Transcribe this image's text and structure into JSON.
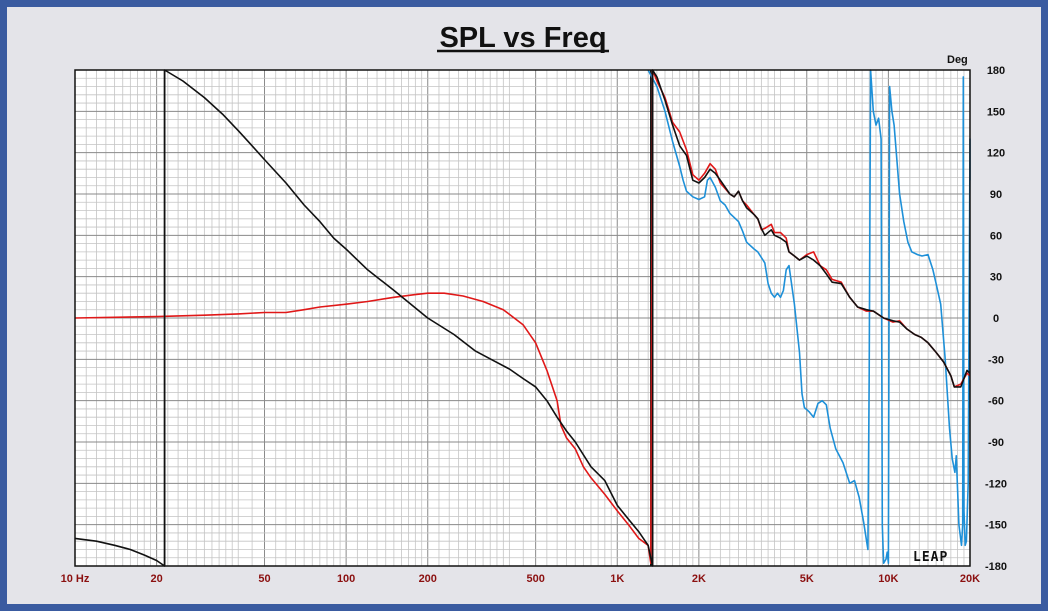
{
  "chart_data": {
    "type": "line",
    "title": "SPL vs Freq",
    "xlabel": "",
    "ylabel": "Deg",
    "xscale": "log",
    "xlim": [
      10,
      20000
    ],
    "ylim": [
      -180,
      180
    ],
    "grid": true,
    "legend": "none",
    "brand": "LEAP",
    "x_tick_labels": [
      {
        "value": 10,
        "label": "10 Hz"
      },
      {
        "value": 20,
        "label": "20"
      },
      {
        "value": 50,
        "label": "50"
      },
      {
        "value": 100,
        "label": "100"
      },
      {
        "value": 200,
        "label": "200"
      },
      {
        "value": 500,
        "label": "500"
      },
      {
        "value": 1000,
        "label": "1K"
      },
      {
        "value": 2000,
        "label": "2K"
      },
      {
        "value": 5000,
        "label": "5K"
      },
      {
        "value": 10000,
        "label": "10K"
      },
      {
        "value": 20000,
        "label": "20K"
      }
    ],
    "y_tick_labels": [
      {
        "value": 180,
        "label": "180"
      },
      {
        "value": 150,
        "label": "150"
      },
      {
        "value": 120,
        "label": "120"
      },
      {
        "value": 90,
        "label": "90"
      },
      {
        "value": 60,
        "label": "60"
      },
      {
        "value": 30,
        "label": "30"
      },
      {
        "value": 0,
        "label": "0"
      },
      {
        "value": -30,
        "label": "-30"
      },
      {
        "value": -60,
        "label": "-60"
      },
      {
        "value": -90,
        "label": "-90"
      },
      {
        "value": -120,
        "label": "-120"
      },
      {
        "value": -150,
        "label": "-150"
      },
      {
        "value": -180,
        "label": "-180"
      }
    ],
    "series": [
      {
        "color": "#1e90d8",
        "points": [
          [
            1300,
            180
          ],
          [
            1400,
            168
          ],
          [
            1500,
            150
          ],
          [
            1600,
            128
          ],
          [
            1700,
            110
          ],
          [
            1750,
            100
          ],
          [
            1800,
            92
          ],
          [
            1900,
            88
          ],
          [
            2000,
            86
          ],
          [
            2100,
            88
          ],
          [
            2150,
            100
          ],
          [
            2200,
            102
          ],
          [
            2300,
            95
          ],
          [
            2400,
            85
          ],
          [
            2500,
            82
          ],
          [
            2600,
            76
          ],
          [
            2800,
            70
          ],
          [
            2900,
            63
          ],
          [
            3000,
            55
          ],
          [
            3200,
            50
          ],
          [
            3300,
            48
          ],
          [
            3500,
            40
          ],
          [
            3600,
            25
          ],
          [
            3700,
            18
          ],
          [
            3800,
            15
          ],
          [
            3900,
            18
          ],
          [
            4000,
            15
          ],
          [
            4100,
            20
          ],
          [
            4200,
            35
          ],
          [
            4300,
            38
          ],
          [
            4500,
            10
          ],
          [
            4700,
            -25
          ],
          [
            4800,
            -55
          ],
          [
            4900,
            -65
          ],
          [
            5100,
            -68
          ],
          [
            5300,
            -72
          ],
          [
            5500,
            -62
          ],
          [
            5700,
            -60
          ],
          [
            5900,
            -63
          ],
          [
            6100,
            -80
          ],
          [
            6400,
            -95
          ],
          [
            6800,
            -105
          ],
          [
            7200,
            -120
          ],
          [
            7500,
            -118
          ],
          [
            7800,
            -130
          ],
          [
            8100,
            -148
          ],
          [
            8400,
            -168
          ],
          [
            8500,
            -40
          ],
          [
            8600,
            180
          ],
          [
            8800,
            150
          ],
          [
            9000,
            140
          ],
          [
            9200,
            145
          ],
          [
            9400,
            130
          ],
          [
            9500,
            -150
          ],
          [
            9600,
            -178
          ],
          [
            9800,
            -175
          ],
          [
            9900,
            -170
          ],
          [
            10000,
            -178
          ],
          [
            10100,
            168
          ],
          [
            10300,
            150
          ],
          [
            10500,
            140
          ],
          [
            10800,
            110
          ],
          [
            11000,
            90
          ],
          [
            11400,
            70
          ],
          [
            11800,
            55
          ],
          [
            12200,
            48
          ],
          [
            12800,
            46
          ],
          [
            13300,
            45
          ],
          [
            14000,
            46
          ],
          [
            14600,
            35
          ],
          [
            15000,
            25
          ],
          [
            15600,
            10
          ],
          [
            16200,
            -30
          ],
          [
            16800,
            -80
          ],
          [
            17200,
            -102
          ],
          [
            17600,
            -112
          ],
          [
            17800,
            -100
          ],
          [
            18200,
            -150
          ],
          [
            18600,
            -165
          ],
          [
            18800,
            -150
          ],
          [
            18900,
            175
          ],
          [
            19000,
            -140
          ],
          [
            19200,
            -165
          ],
          [
            19400,
            -162
          ],
          [
            19700,
            -120
          ],
          [
            20000,
            130
          ],
          [
            20000,
            100
          ]
        ]
      },
      {
        "color": "#e01818",
        "points": [
          [
            10,
            0
          ],
          [
            20,
            1
          ],
          [
            30,
            2
          ],
          [
            40,
            3
          ],
          [
            50,
            4
          ],
          [
            60,
            4
          ],
          [
            70,
            6
          ],
          [
            80,
            8
          ],
          [
            100,
            10
          ],
          [
            120,
            12
          ],
          [
            150,
            15
          ],
          [
            180,
            17
          ],
          [
            200,
            18
          ],
          [
            230,
            18
          ],
          [
            270,
            16
          ],
          [
            320,
            12
          ],
          [
            380,
            6
          ],
          [
            450,
            -5
          ],
          [
            500,
            -18
          ],
          [
            550,
            -38
          ],
          [
            600,
            -60
          ],
          [
            620,
            -78
          ],
          [
            650,
            -87
          ],
          [
            700,
            -95
          ],
          [
            750,
            -108
          ],
          [
            800,
            -116
          ],
          [
            900,
            -128
          ],
          [
            1000,
            -140
          ],
          [
            1100,
            -150
          ],
          [
            1200,
            -160
          ],
          [
            1300,
            -165
          ],
          [
            1330,
            -178
          ],
          [
            1350,
            180
          ],
          [
            1400,
            172
          ],
          [
            1500,
            160
          ],
          [
            1600,
            142
          ],
          [
            1700,
            135
          ],
          [
            1800,
            122
          ],
          [
            1900,
            104
          ],
          [
            2000,
            100
          ],
          [
            2100,
            105
          ],
          [
            2200,
            112
          ],
          [
            2300,
            108
          ],
          [
            2400,
            98
          ],
          [
            2500,
            94
          ],
          [
            2600,
            90
          ],
          [
            2700,
            88
          ],
          [
            2800,
            92
          ],
          [
            2900,
            85
          ],
          [
            3000,
            82
          ],
          [
            3200,
            75
          ],
          [
            3300,
            72
          ],
          [
            3400,
            64
          ],
          [
            3500,
            65
          ],
          [
            3700,
            68
          ],
          [
            3800,
            62
          ],
          [
            4000,
            62
          ],
          [
            4200,
            58
          ],
          [
            4300,
            48
          ],
          [
            4500,
            45
          ],
          [
            4700,
            42
          ],
          [
            5000,
            46
          ],
          [
            5300,
            48
          ],
          [
            5600,
            38
          ],
          [
            5900,
            35
          ],
          [
            6200,
            28
          ],
          [
            6700,
            26
          ],
          [
            7200,
            15
          ],
          [
            7700,
            8
          ],
          [
            8300,
            5
          ],
          [
            8800,
            5
          ],
          [
            9600,
            0
          ],
          [
            10400,
            -3
          ],
          [
            11000,
            -2
          ],
          [
            11700,
            -8
          ],
          [
            12500,
            -12
          ],
          [
            13200,
            -14
          ],
          [
            14000,
            -18
          ],
          [
            15000,
            -25
          ],
          [
            16000,
            -32
          ],
          [
            17000,
            -42
          ],
          [
            17500,
            -50
          ],
          [
            18500,
            -48
          ],
          [
            19500,
            -40
          ],
          [
            20000,
            -42
          ]
        ]
      },
      {
        "color": "#111111",
        "points": [
          [
            10,
            -160
          ],
          [
            12,
            -162
          ],
          [
            14,
            -165
          ],
          [
            16,
            -168
          ],
          [
            18,
            -172
          ],
          [
            20,
            -176
          ],
          [
            21.4,
            -180
          ],
          [
            21.4,
            180
          ],
          [
            25,
            172
          ],
          [
            30,
            160
          ],
          [
            35,
            148
          ],
          [
            40,
            136
          ],
          [
            45,
            125
          ],
          [
            50,
            115
          ],
          [
            60,
            98
          ],
          [
            70,
            82
          ],
          [
            80,
            70
          ],
          [
            90,
            58
          ],
          [
            100,
            50
          ],
          [
            120,
            35
          ],
          [
            150,
            20
          ],
          [
            200,
            0
          ],
          [
            250,
            -12
          ],
          [
            300,
            -24
          ],
          [
            350,
            -31
          ],
          [
            400,
            -37
          ],
          [
            450,
            -44
          ],
          [
            500,
            -50
          ],
          [
            550,
            -60
          ],
          [
            600,
            -72
          ],
          [
            650,
            -82
          ],
          [
            700,
            -90
          ],
          [
            800,
            -108
          ],
          [
            900,
            -118
          ],
          [
            1000,
            -136
          ],
          [
            1100,
            -146
          ],
          [
            1200,
            -155
          ],
          [
            1300,
            -165
          ],
          [
            1350,
            -180
          ],
          [
            1350,
            180
          ],
          [
            1400,
            175
          ],
          [
            1500,
            158
          ],
          [
            1600,
            140
          ],
          [
            1700,
            125
          ],
          [
            1800,
            118
          ],
          [
            1900,
            100
          ],
          [
            2000,
            98
          ],
          [
            2100,
            102
          ],
          [
            2200,
            108
          ],
          [
            2300,
            105
          ],
          [
            2400,
            100
          ],
          [
            2500,
            95
          ],
          [
            2600,
            90
          ],
          [
            2700,
            88
          ],
          [
            2800,
            92
          ],
          [
            2900,
            85
          ],
          [
            3000,
            80
          ],
          [
            3200,
            75
          ],
          [
            3300,
            72
          ],
          [
            3400,
            65
          ],
          [
            3500,
            60
          ],
          [
            3700,
            64
          ],
          [
            3800,
            60
          ],
          [
            4000,
            58
          ],
          [
            4200,
            55
          ],
          [
            4300,
            48
          ],
          [
            4500,
            45
          ],
          [
            4700,
            42
          ],
          [
            5000,
            45
          ],
          [
            5300,
            42
          ],
          [
            5600,
            38
          ],
          [
            5900,
            32
          ],
          [
            6200,
            26
          ],
          [
            6700,
            25
          ],
          [
            7200,
            15
          ],
          [
            7700,
            8
          ],
          [
            8300,
            6
          ],
          [
            8800,
            5
          ],
          [
            9600,
            0
          ],
          [
            10400,
            -2
          ],
          [
            11000,
            -3
          ],
          [
            11700,
            -8
          ],
          [
            12500,
            -12
          ],
          [
            13200,
            -14
          ],
          [
            14000,
            -18
          ],
          [
            15000,
            -25
          ],
          [
            16000,
            -32
          ],
          [
            17000,
            -42
          ],
          [
            17500,
            -50
          ],
          [
            18500,
            -50
          ],
          [
            19500,
            -38
          ],
          [
            20000,
            -40
          ]
        ]
      }
    ],
    "vertical_markers": [
      21.4,
      1330,
      1350
    ]
  }
}
